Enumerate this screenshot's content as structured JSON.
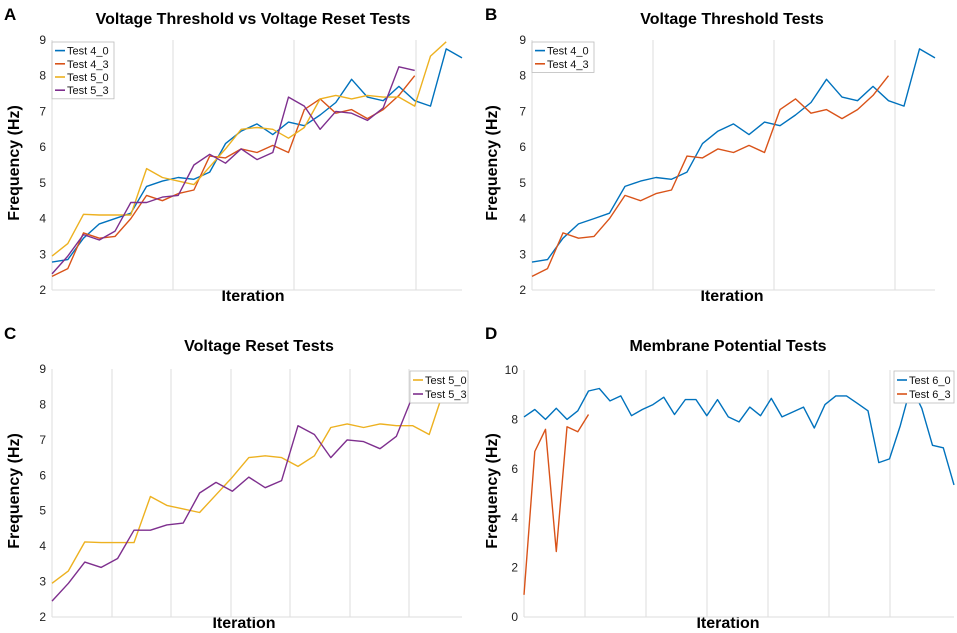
{
  "chart_data": [
    {
      "panel": "A",
      "type": "line",
      "title": "Voltage Threshold vs Voltage Reset Tests",
      "xlabel": "Iteration",
      "ylabel": "Frequency (Hz)",
      "ylim": [
        2,
        9
      ],
      "yticks": [
        2,
        3,
        4,
        5,
        6,
        7,
        8,
        9
      ],
      "legend": "top-left",
      "series": [
        {
          "name": "Test 4_0",
          "color": "#0072BD",
          "values": [
            2.78,
            2.85,
            3.45,
            3.85,
            4.0,
            4.15,
            4.9,
            5.05,
            5.15,
            5.1,
            5.3,
            6.1,
            6.45,
            6.65,
            6.35,
            6.7,
            6.6,
            6.9,
            7.25,
            7.9,
            7.4,
            7.3,
            7.7,
            7.3,
            7.15,
            8.75,
            8.5
          ]
        },
        {
          "name": "Test 4_3",
          "color": "#D95319",
          "values": [
            2.38,
            2.6,
            3.6,
            3.45,
            3.5,
            4.0,
            4.65,
            4.5,
            4.7,
            4.8,
            5.75,
            5.7,
            5.95,
            5.85,
            6.05,
            5.85,
            7.05,
            7.35,
            6.95,
            7.05,
            6.8,
            7.05,
            7.45,
            8.0
          ]
        },
        {
          "name": "Test 5_0",
          "color": "#EDB120",
          "values": [
            2.95,
            3.3,
            4.12,
            4.1,
            4.1,
            4.1,
            5.4,
            5.15,
            5.05,
            4.95,
            5.45,
            5.95,
            6.5,
            6.55,
            6.5,
            6.25,
            6.55,
            7.35,
            7.45,
            7.35,
            7.45,
            7.4,
            7.4,
            7.15,
            8.55,
            8.95
          ]
        },
        {
          "name": "Test 5_3",
          "color": "#7E2F8E",
          "values": [
            2.45,
            2.95,
            3.55,
            3.4,
            3.65,
            4.45,
            4.45,
            4.6,
            4.65,
            5.5,
            5.8,
            5.55,
            5.95,
            5.65,
            5.85,
            7.4,
            7.15,
            6.5,
            7.0,
            6.95,
            6.75,
            7.1,
            8.25,
            8.15
          ]
        }
      ]
    },
    {
      "panel": "B",
      "type": "line",
      "title": "Voltage Threshold Tests",
      "xlabel": "Iteration",
      "ylabel": "Frequency (Hz)",
      "ylim": [
        2,
        9
      ],
      "yticks": [
        2,
        3,
        4,
        5,
        6,
        7,
        8,
        9
      ],
      "legend": "top-left",
      "series": [
        {
          "name": "Test 4_0",
          "color": "#0072BD",
          "values": [
            2.78,
            2.85,
            3.45,
            3.85,
            4.0,
            4.15,
            4.9,
            5.05,
            5.15,
            5.1,
            5.3,
            6.1,
            6.45,
            6.65,
            6.35,
            6.7,
            6.6,
            6.9,
            7.25,
            7.9,
            7.4,
            7.3,
            7.7,
            7.3,
            7.15,
            8.75,
            8.5
          ]
        },
        {
          "name": "Test 4_3",
          "color": "#D95319",
          "values": [
            2.38,
            2.6,
            3.6,
            3.45,
            3.5,
            4.0,
            4.65,
            4.5,
            4.7,
            4.8,
            5.75,
            5.7,
            5.95,
            5.85,
            6.05,
            5.85,
            7.05,
            7.35,
            6.95,
            7.05,
            6.8,
            7.05,
            7.45,
            8.0
          ]
        }
      ]
    },
    {
      "panel": "C",
      "type": "line",
      "title": "Voltage Reset Tests",
      "xlabel": "Iteration",
      "ylabel": "Frequency (Hz)",
      "ylim": [
        2,
        9
      ],
      "yticks": [
        2,
        3,
        4,
        5,
        6,
        7,
        8,
        9
      ],
      "legend": "top-right",
      "series": [
        {
          "name": "Test 5_0",
          "color": "#EDB120",
          "values": [
            2.95,
            3.3,
            4.12,
            4.1,
            4.1,
            4.1,
            5.4,
            5.15,
            5.05,
            4.95,
            5.45,
            5.95,
            6.5,
            6.55,
            6.5,
            6.25,
            6.55,
            7.35,
            7.45,
            7.35,
            7.45,
            7.4,
            7.4,
            7.15,
            8.55,
            8.95
          ]
        },
        {
          "name": "Test 5_3",
          "color": "#7E2F8E",
          "values": [
            2.45,
            2.95,
            3.55,
            3.4,
            3.65,
            4.45,
            4.45,
            4.6,
            4.65,
            5.5,
            5.8,
            5.55,
            5.95,
            5.65,
            5.85,
            7.4,
            7.15,
            6.5,
            7.0,
            6.95,
            6.75,
            7.1,
            8.25,
            8.15
          ]
        }
      ]
    },
    {
      "panel": "D",
      "type": "line",
      "title": "Membrane Potential Tests",
      "xlabel": "Iteration",
      "ylabel": "Frequency (Hz)",
      "ylim": [
        0,
        10
      ],
      "yticks": [
        0,
        2,
        4,
        6,
        8,
        10
      ],
      "legend": "top-right",
      "series": [
        {
          "name": "Test 6_0",
          "color": "#0072BD",
          "values": [
            8.1,
            8.4,
            8.0,
            8.45,
            8.0,
            8.35,
            9.15,
            9.25,
            8.75,
            8.95,
            8.15,
            8.4,
            8.6,
            8.9,
            8.2,
            8.8,
            8.8,
            8.15,
            8.8,
            8.1,
            7.9,
            8.5,
            8.15,
            8.85,
            8.1,
            8.3,
            8.5,
            7.65,
            8.6,
            8.95,
            8.95,
            8.65,
            8.35,
            6.25,
            6.4,
            7.75,
            9.35,
            8.45,
            6.95,
            6.85,
            5.35
          ]
        },
        {
          "name": "Test 6_3",
          "color": "#D95319",
          "values": [
            0.9,
            6.7,
            7.6,
            2.65,
            7.7,
            7.5,
            8.2
          ]
        }
      ]
    }
  ]
}
